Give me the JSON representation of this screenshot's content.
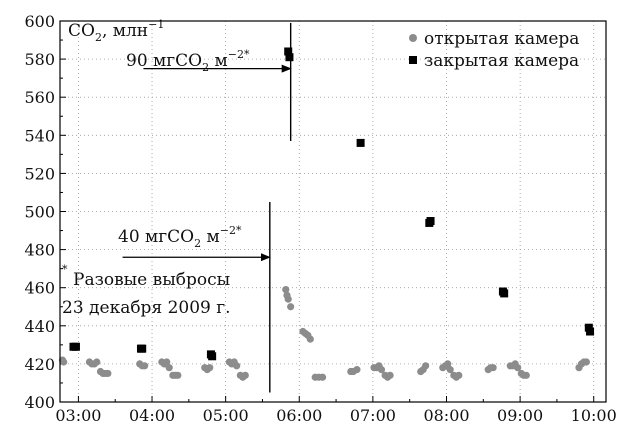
{
  "chart_data": {
    "type": "scatter",
    "ylim": [
      400,
      600
    ],
    "yticks": [
      400,
      420,
      440,
      460,
      480,
      500,
      520,
      540,
      560,
      580,
      600
    ],
    "xlim": [
      "02:45",
      "10:10"
    ],
    "xticks": [
      "03:00",
      "04:00",
      "05:00",
      "06:00",
      "07:00",
      "08:00",
      "09:00",
      "10:00"
    ],
    "grid": "dotted",
    "ylabel": {
      "base": "CO",
      "sub": "2",
      "unit": ", млн",
      "sup": "−1"
    },
    "legend": {
      "placement": "top-right",
      "items": [
        {
          "label": "открытая камера",
          "marker": "circle",
          "color": "#8c8c8c"
        },
        {
          "label": "закрытая камера",
          "marker": "square",
          "color": "#000000"
        }
      ]
    },
    "series": [
      {
        "name": "открытая камера",
        "marker": "circle",
        "color": "#8c8c8c",
        "points": [
          [
            "02:47",
            422
          ],
          [
            "02:48",
            421
          ],
          [
            "03:09",
            421
          ],
          [
            "03:11",
            420
          ],
          [
            "03:13",
            420
          ],
          [
            "03:15",
            421
          ],
          [
            "03:18",
            416
          ],
          [
            "03:20",
            415
          ],
          [
            "03:22",
            415
          ],
          [
            "03:24",
            415
          ],
          [
            "03:50",
            420
          ],
          [
            "03:52",
            419
          ],
          [
            "03:54",
            419
          ],
          [
            "04:08",
            421
          ],
          [
            "04:10",
            420
          ],
          [
            "04:12",
            421
          ],
          [
            "04:14",
            418
          ],
          [
            "04:17",
            414
          ],
          [
            "04:19",
            414
          ],
          [
            "04:21",
            414
          ],
          [
            "04:43",
            418
          ],
          [
            "04:45",
            417
          ],
          [
            "04:47",
            418
          ],
          [
            "05:03",
            421
          ],
          [
            "05:05",
            420
          ],
          [
            "05:07",
            421
          ],
          [
            "05:09",
            419
          ],
          [
            "05:12",
            414
          ],
          [
            "05:14",
            413
          ],
          [
            "05:16",
            414
          ],
          [
            "05:49",
            459
          ],
          [
            "05:50",
            456
          ],
          [
            "05:51",
            454
          ],
          [
            "05:53",
            450
          ],
          [
            "06:03",
            437
          ],
          [
            "06:05",
            436
          ],
          [
            "06:07",
            435
          ],
          [
            "06:09",
            433
          ],
          [
            "06:13",
            413
          ],
          [
            "06:16",
            413
          ],
          [
            "06:19",
            413
          ],
          [
            "06:42",
            416
          ],
          [
            "06:44",
            416
          ],
          [
            "06:47",
            417
          ],
          [
            "07:01",
            418
          ],
          [
            "07:03",
            418
          ],
          [
            "07:05",
            419
          ],
          [
            "07:07",
            417
          ],
          [
            "07:10",
            414
          ],
          [
            "07:12",
            413
          ],
          [
            "07:14",
            414
          ],
          [
            "07:39",
            416
          ],
          [
            "07:41",
            417
          ],
          [
            "07:43",
            419
          ],
          [
            "07:57",
            418
          ],
          [
            "07:59",
            419
          ],
          [
            "08:01",
            420
          ],
          [
            "08:03",
            417
          ],
          [
            "08:06",
            414
          ],
          [
            "08:08",
            413
          ],
          [
            "08:10",
            414
          ],
          [
            "08:34",
            417
          ],
          [
            "08:36",
            418
          ],
          [
            "08:38",
            418
          ],
          [
            "08:52",
            419
          ],
          [
            "08:54",
            419
          ],
          [
            "08:56",
            420
          ],
          [
            "08:58",
            418
          ],
          [
            "09:01",
            415
          ],
          [
            "09:03",
            414
          ],
          [
            "09:05",
            414
          ],
          [
            "09:48",
            418
          ],
          [
            "09:50",
            420
          ],
          [
            "09:52",
            421
          ],
          [
            "09:54",
            421
          ]
        ]
      },
      {
        "name": "закрытая камера",
        "marker": "square",
        "color": "#000000",
        "points": [
          [
            "02:56",
            429
          ],
          [
            "02:58",
            429
          ],
          [
            "03:51",
            428
          ],
          [
            "03:52",
            428
          ],
          [
            "04:48",
            425
          ],
          [
            "04:49",
            424
          ],
          [
            "05:51",
            584
          ],
          [
            "05:52",
            581
          ],
          [
            "06:50",
            536
          ],
          [
            "07:46",
            494
          ],
          [
            "07:47",
            495
          ],
          [
            "08:46",
            458
          ],
          [
            "08:47",
            457
          ],
          [
            "09:56",
            439
          ],
          [
            "09:57",
            437
          ]
        ]
      }
    ],
    "annotations": {
      "arrow_top": {
        "base": "90 мгCO",
        "sub": "2",
        "mid": " м",
        "sup": "−2*",
        "at": "05:53",
        "y_from": 537,
        "y_to": 599,
        "arrow_y": 575,
        "arrow_from": "03:53"
      },
      "arrow_mid": {
        "base": "40 мгCO",
        "sub": "2",
        "mid": " м",
        "sup": "−2*",
        "at": "05:36",
        "y_from": 405,
        "y_to": 505,
        "arrow_y": 476,
        "arrow_from": "03:36"
      },
      "footnote_mark": "*",
      "footnote_line1": "Разовые выбросы",
      "footnote_line2": "23 декабря 2009 г."
    }
  }
}
